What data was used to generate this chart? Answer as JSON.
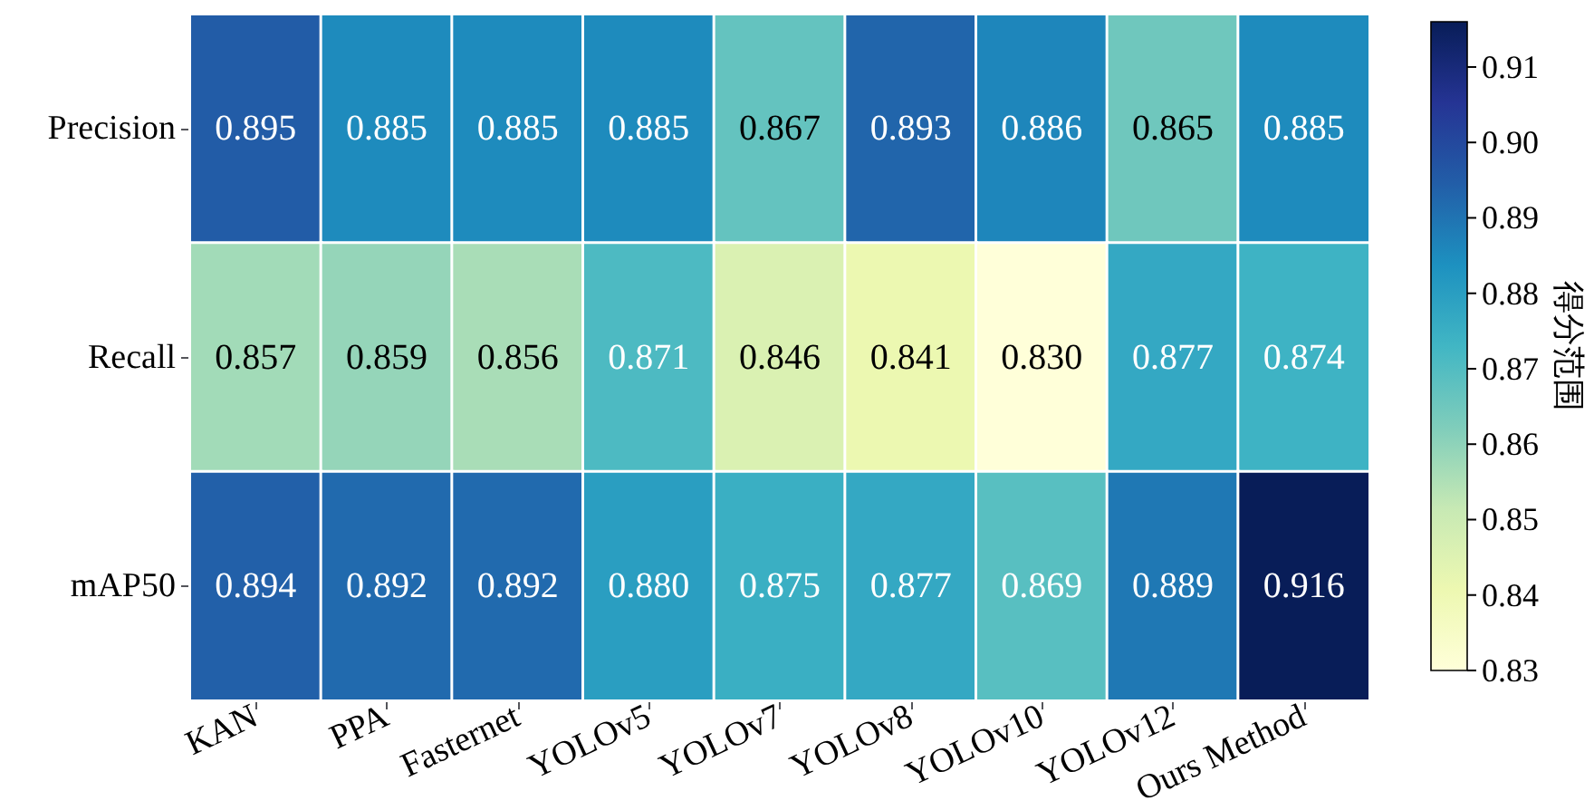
{
  "chart_data": {
    "type": "heatmap",
    "categories": [
      "KAN",
      "PPA",
      "Fasternet",
      "YOLOv5",
      "YOLOv7",
      "YOLOv8",
      "YOLOv10",
      "YOLOv12",
      "Ours Method"
    ],
    "y_categories": [
      "Precision",
      "Recall",
      "mAP50"
    ],
    "cells": [
      [
        0.895,
        0.885,
        0.885,
        0.885,
        0.867,
        0.893,
        0.886,
        0.865,
        0.885
      ],
      [
        0.857,
        0.859,
        0.856,
        0.871,
        0.846,
        0.841,
        0.83,
        0.877,
        0.874
      ],
      [
        0.894,
        0.892,
        0.892,
        0.88,
        0.875,
        0.877,
        0.869,
        0.889,
        0.916
      ]
    ],
    "cell_labels": [
      [
        "0.895",
        "0.885",
        "0.885",
        "0.885",
        "0.867",
        "0.893",
        "0.886",
        "0.865",
        "0.885"
      ],
      [
        "0.857",
        "0.859",
        "0.856",
        "0.871",
        "0.846",
        "0.841",
        "0.830",
        "0.877",
        "0.874"
      ],
      [
        "0.894",
        "0.892",
        "0.892",
        "0.880",
        "0.875",
        "0.877",
        "0.869",
        "0.889",
        "0.916"
      ]
    ],
    "clabel": "得分范围",
    "clim": [
      0.83,
      0.916
    ],
    "cticks": [
      {
        "value": 0.83,
        "label": "0.83"
      },
      {
        "value": 0.84,
        "label": "0.84"
      },
      {
        "value": 0.85,
        "label": "0.85"
      },
      {
        "value": 0.86,
        "label": "0.86"
      },
      {
        "value": 0.87,
        "label": "0.87"
      },
      {
        "value": 0.88,
        "label": "0.88"
      },
      {
        "value": 0.89,
        "label": "0.89"
      },
      {
        "value": 0.9,
        "label": "0.90"
      },
      {
        "value": 0.91,
        "label": "0.91"
      }
    ],
    "data_labels": true
  }
}
